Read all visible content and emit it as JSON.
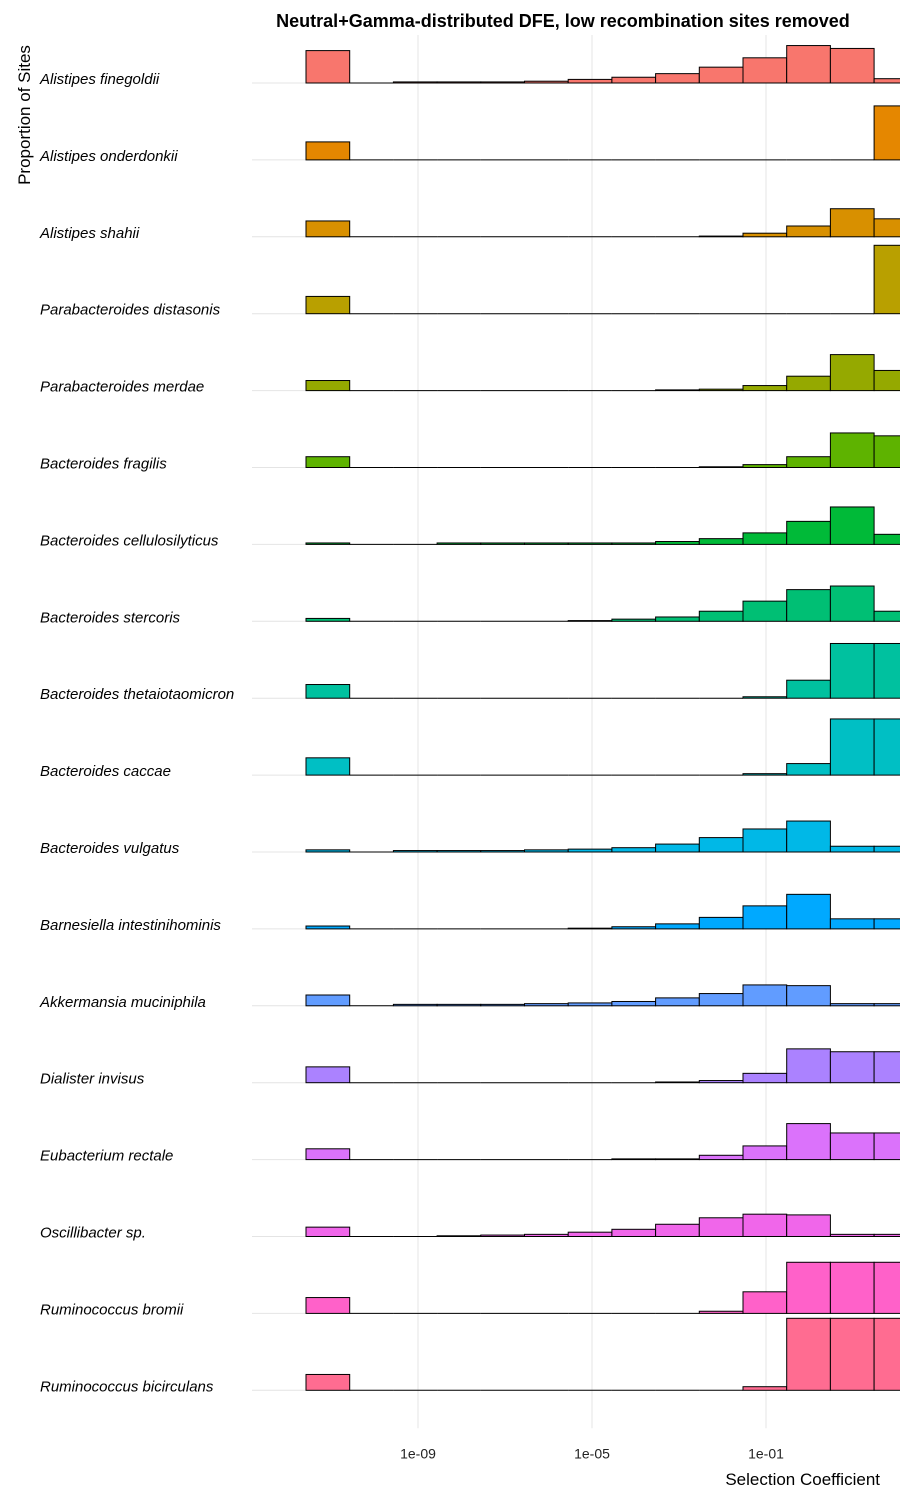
{
  "chart_data": {
    "type": "histogram-ridgeline",
    "title": "Neutral+Gamma-distributed DFE, low recombination sites removed",
    "xlabel": "Selection Coefficient",
    "ylabel": "Proportion of Sites",
    "x_scale": "log10",
    "x_ticks": [
      "1e-09",
      "1e-05",
      "1e-01"
    ],
    "grid": true,
    "legend": "none",
    "bins": [
      "neutral",
      "1e-12",
      "1e-11",
      "1e-10",
      "1e-09",
      "1e-08",
      "1e-07",
      "1e-06",
      "1e-05",
      "1e-04",
      "1e-03",
      "1e-02",
      "1e-01",
      "1e+00"
    ],
    "neutral_bin_label": "",
    "series": [
      {
        "name": "Alistipes finegoldii",
        "color": "#F8766D",
        "values": [
          0.45,
          0,
          0.015,
          0.015,
          0.015,
          0.025,
          0.05,
          0.08,
          0.13,
          0.22,
          0.35,
          0.52,
          0.48,
          0.06
        ]
      },
      {
        "name": "Alistipes onderdonkii",
        "color": "#E58700",
        "values": [
          0.25,
          0,
          0,
          0,
          0,
          0,
          0,
          0,
          0,
          0,
          0,
          0,
          0,
          0.75
        ]
      },
      {
        "name": "Alistipes shahii",
        "color": "#D89000",
        "values": [
          0.22,
          0,
          0,
          0,
          0,
          0,
          0,
          0,
          0,
          0.01,
          0.05,
          0.15,
          0.39,
          0.25
        ]
      },
      {
        "name": "Parabacteroides distasonis",
        "color": "#B9A000",
        "values": [
          0.24,
          0,
          0,
          0,
          0,
          0,
          0,
          0,
          0,
          0,
          0,
          0,
          0,
          0.95
        ]
      },
      {
        "name": "Parabacteroides merdae",
        "color": "#95A900",
        "values": [
          0.14,
          0,
          0,
          0,
          0,
          0,
          0,
          0,
          0.01,
          0.02,
          0.07,
          0.2,
          0.5,
          0.28
        ]
      },
      {
        "name": "Bacteroides fragilis",
        "color": "#5EB300",
        "values": [
          0.15,
          0,
          0,
          0,
          0,
          0,
          0,
          0,
          0,
          0.01,
          0.04,
          0.15,
          0.48,
          0.44
        ]
      },
      {
        "name": "Bacteroides cellulosilyticus",
        "color": "#00BA38",
        "values": [
          0.02,
          0,
          0,
          0.02,
          0.02,
          0.02,
          0.02,
          0.02,
          0.04,
          0.08,
          0.16,
          0.32,
          0.52,
          0.14
        ]
      },
      {
        "name": "Bacteroides stercoris",
        "color": "#00BF74",
        "values": [
          0.04,
          0,
          0,
          0,
          0,
          0,
          0.01,
          0.03,
          0.06,
          0.14,
          0.28,
          0.44,
          0.49,
          0.14
        ]
      },
      {
        "name": "Bacteroides thetaiotaomicron",
        "color": "#00C19F",
        "values": [
          0.19,
          0,
          0,
          0,
          0,
          0,
          0,
          0,
          0,
          0,
          0.02,
          0.25,
          0.76,
          0.76
        ]
      },
      {
        "name": "Bacteroides caccae",
        "color": "#00BFC4",
        "values": [
          0.24,
          0,
          0,
          0,
          0,
          0,
          0,
          0,
          0,
          0,
          0.02,
          0.16,
          0.78,
          0.78
        ]
      },
      {
        "name": "Bacteroides vulgatus",
        "color": "#00B8E7",
        "values": [
          0.03,
          0,
          0.02,
          0.02,
          0.02,
          0.03,
          0.04,
          0.06,
          0.11,
          0.2,
          0.32,
          0.43,
          0.08,
          0.08
        ]
      },
      {
        "name": "Barnesiella intestinihominis",
        "color": "#00A9FF",
        "values": [
          0.04,
          0,
          0,
          0,
          0,
          0,
          0.01,
          0.03,
          0.07,
          0.16,
          0.32,
          0.48,
          0.14,
          0.14
        ]
      },
      {
        "name": "Akkermansia muciniphila",
        "color": "#619CFF",
        "values": [
          0.15,
          0,
          0.02,
          0.02,
          0.02,
          0.03,
          0.04,
          0.06,
          0.11,
          0.17,
          0.29,
          0.28,
          0.03,
          0.03
        ]
      },
      {
        "name": "Dialister invisus",
        "color": "#AB82FF",
        "values": [
          0.22,
          0,
          0,
          0,
          0,
          0,
          0,
          0,
          0.01,
          0.03,
          0.13,
          0.47,
          0.43,
          0.43
        ]
      },
      {
        "name": "Eubacterium rectale",
        "color": "#DB72FB",
        "values": [
          0.15,
          0,
          0,
          0,
          0,
          0,
          0,
          0.01,
          0.01,
          0.06,
          0.19,
          0.5,
          0.37,
          0.37
        ]
      },
      {
        "name": "Oscillibacter sp.",
        "color": "#F066EA",
        "values": [
          0.13,
          0,
          0,
          0.01,
          0.02,
          0.03,
          0.06,
          0.1,
          0.17,
          0.26,
          0.31,
          0.3,
          0.03,
          0.03
        ]
      },
      {
        "name": "Ruminococcus bromii",
        "color": "#FF61C9",
        "values": [
          0.22,
          0,
          0,
          0,
          0,
          0,
          0,
          0,
          0,
          0.03,
          0.3,
          0.71,
          0.71,
          0.71
        ]
      },
      {
        "name": "Ruminococcus bicirculans",
        "color": "#FF6C91",
        "values": [
          0.22,
          0,
          0,
          0,
          0,
          0,
          0,
          0,
          0,
          0,
          0.05,
          1.0,
          1.0,
          1.0
        ]
      }
    ]
  }
}
